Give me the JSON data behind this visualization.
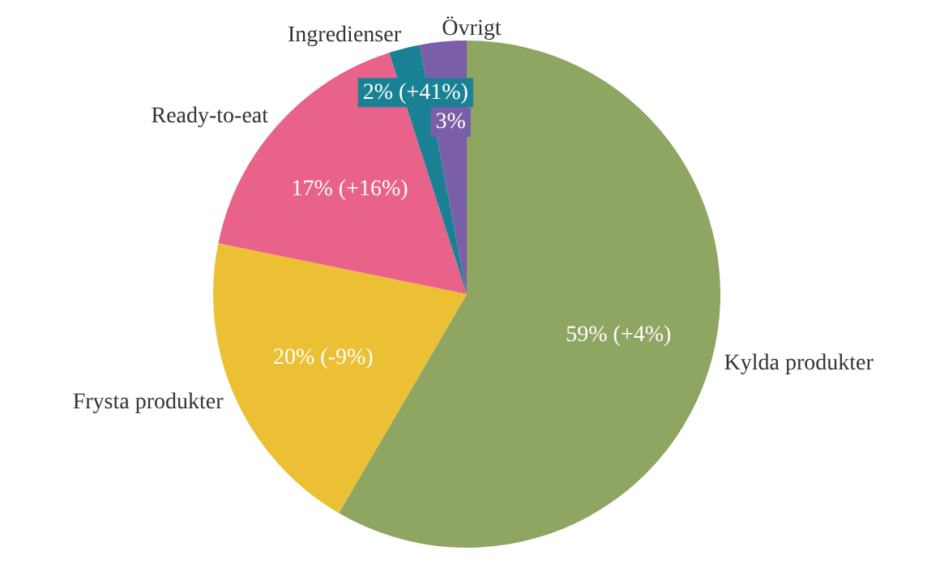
{
  "chart_data": {
    "type": "pie",
    "categories": [
      "Kylda produkter",
      "Frysta produkter",
      "Ready-to-eat",
      "Ingredienser",
      "Övrigt"
    ],
    "values": [
      59,
      20,
      17,
      2,
      3
    ],
    "colors": [
      "#8fa562",
      "#ecc035",
      "#e9628a",
      "#1a8094",
      "#7a5ea8"
    ],
    "value_labels": [
      "59% (+4%)",
      "20% (-9%)",
      "17% (+16%)",
      "2% (+41%)",
      "3%"
    ],
    "legend": false
  }
}
